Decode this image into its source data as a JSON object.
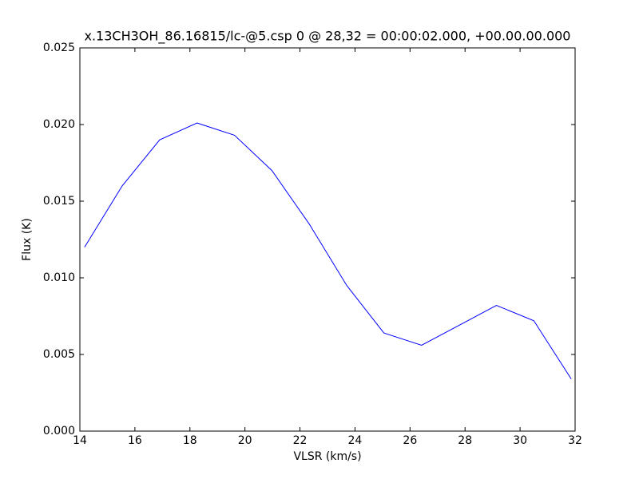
{
  "chart_data": {
    "type": "line",
    "title": "x.13CH3OH_86.16815/lc-@5.csp 0 @ 28,32 = 00:00:02.000, +00.00.00.000",
    "xlabel": "VLSR (km/s)",
    "ylabel": "Flux (K)",
    "x": [
      14.17,
      15.54,
      16.9,
      18.26,
      19.62,
      20.98,
      22.34,
      23.7,
      25.05,
      26.42,
      27.78,
      29.14,
      30.5,
      31.86
    ],
    "series": [
      {
        "color": "#0000ff",
        "values": [
          0.012,
          0.016,
          0.019,
          0.0201,
          0.0193,
          0.017,
          0.0135,
          0.0095,
          0.0064,
          0.0056,
          0.0069,
          0.0082,
          0.0072,
          0.0034
        ]
      }
    ],
    "xlim": [
      14,
      32
    ],
    "xticks": [
      14,
      16,
      18,
      20,
      22,
      24,
      26,
      28,
      30,
      32
    ],
    "ylim": [
      0,
      0.025
    ],
    "yticks": [
      {
        "value": 0,
        "label": "0.000"
      },
      {
        "value": 0.005,
        "label": "0.005"
      },
      {
        "value": 0.01,
        "label": "0.010"
      },
      {
        "value": 0.015,
        "label": "0.015"
      },
      {
        "value": 0.02,
        "label": "0.020"
      },
      {
        "value": 0.025,
        "label": "0.025"
      }
    ],
    "grid": false
  }
}
